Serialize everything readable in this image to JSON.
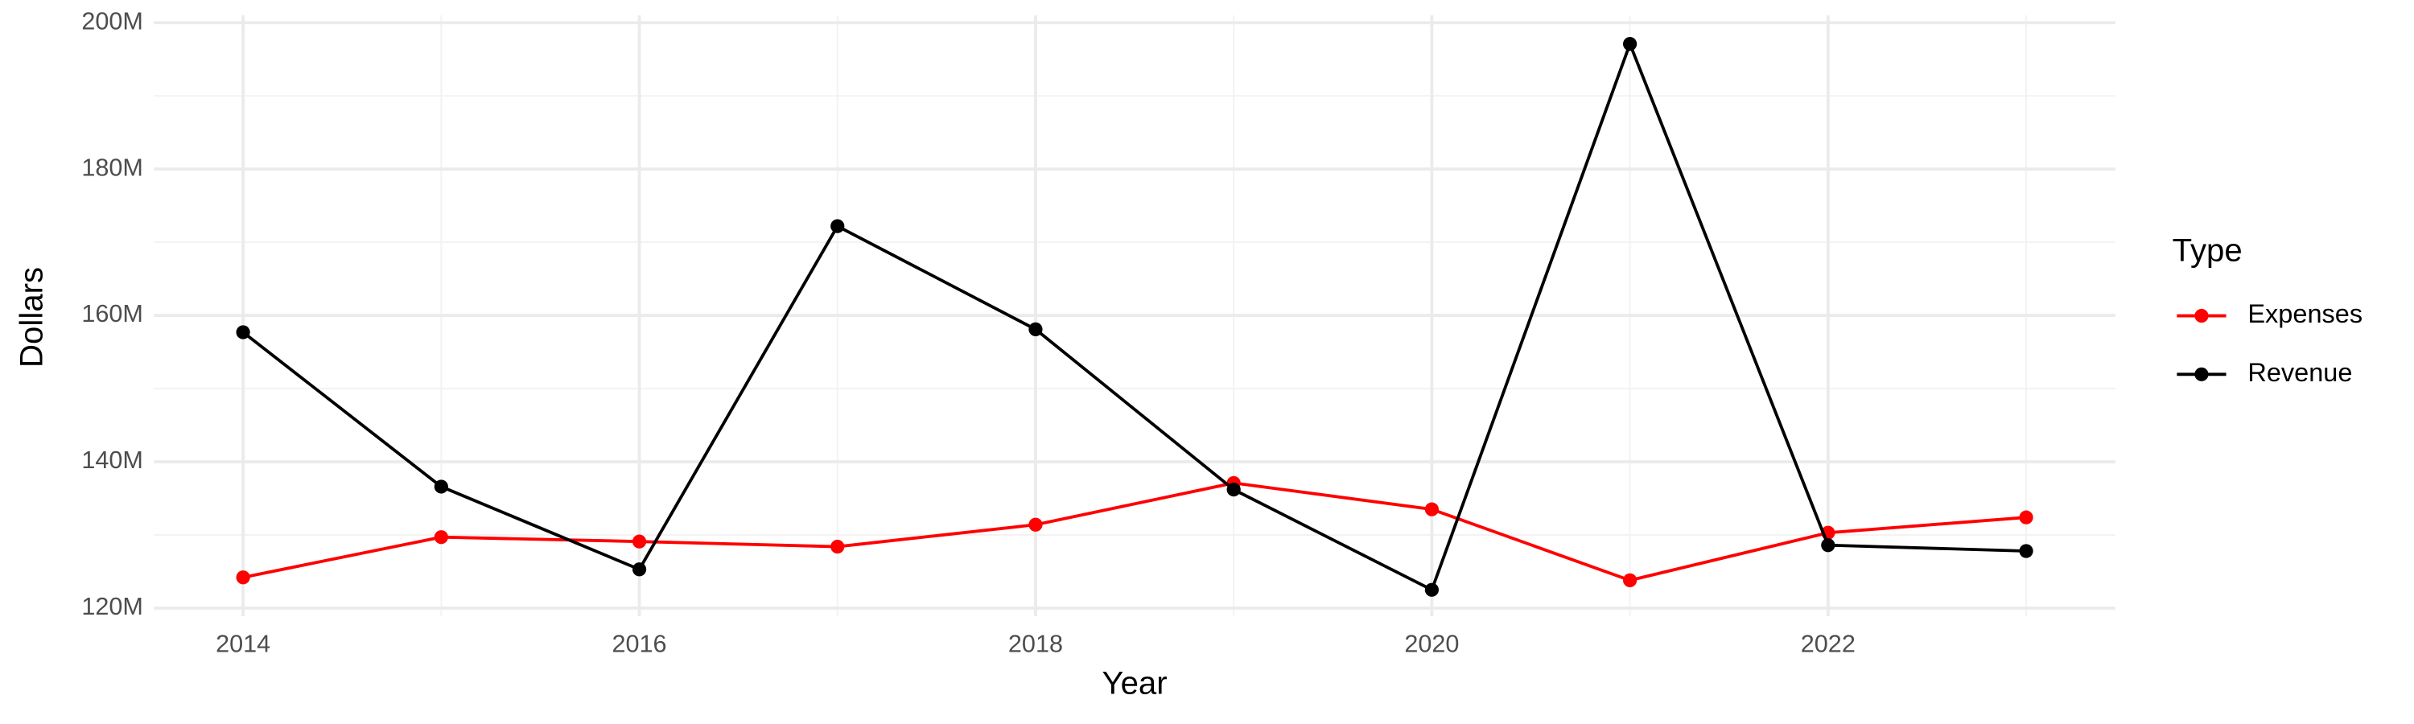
{
  "chart_data": {
    "type": "line",
    "x_label": "Year",
    "y_label": "Dollars",
    "legend_title": "Type",
    "legend_position": "right",
    "grid": true,
    "x": [
      2014,
      2015,
      2016,
      2017,
      2018,
      2019,
      2020,
      2021,
      2022,
      2023
    ],
    "series": [
      {
        "name": "Expenses",
        "color": "#ff0000",
        "values": [
          124200000,
          129700000,
          129100000,
          128400000,
          131400000,
          137100000,
          133500000,
          123800000,
          130300000,
          132400000
        ]
      },
      {
        "name": "Revenue",
        "color": "#000000",
        "values": [
          157700000,
          136600000,
          125300000,
          172200000,
          158100000,
          136200000,
          122500000,
          197100000,
          128600000,
          127800000
        ]
      }
    ],
    "xlim": [
      2013.55,
      2023.45
    ],
    "xticks": [
      2014,
      2016,
      2018,
      2020,
      2022
    ],
    "ylim": [
      118900000,
      201000000
    ],
    "yticks": [
      {
        "value": 120000000,
        "label": "120M"
      },
      {
        "value": 140000000,
        "label": "140M"
      },
      {
        "value": 160000000,
        "label": "160M"
      },
      {
        "value": 180000000,
        "label": "180M"
      },
      {
        "value": 200000000,
        "label": "200M"
      }
    ]
  }
}
